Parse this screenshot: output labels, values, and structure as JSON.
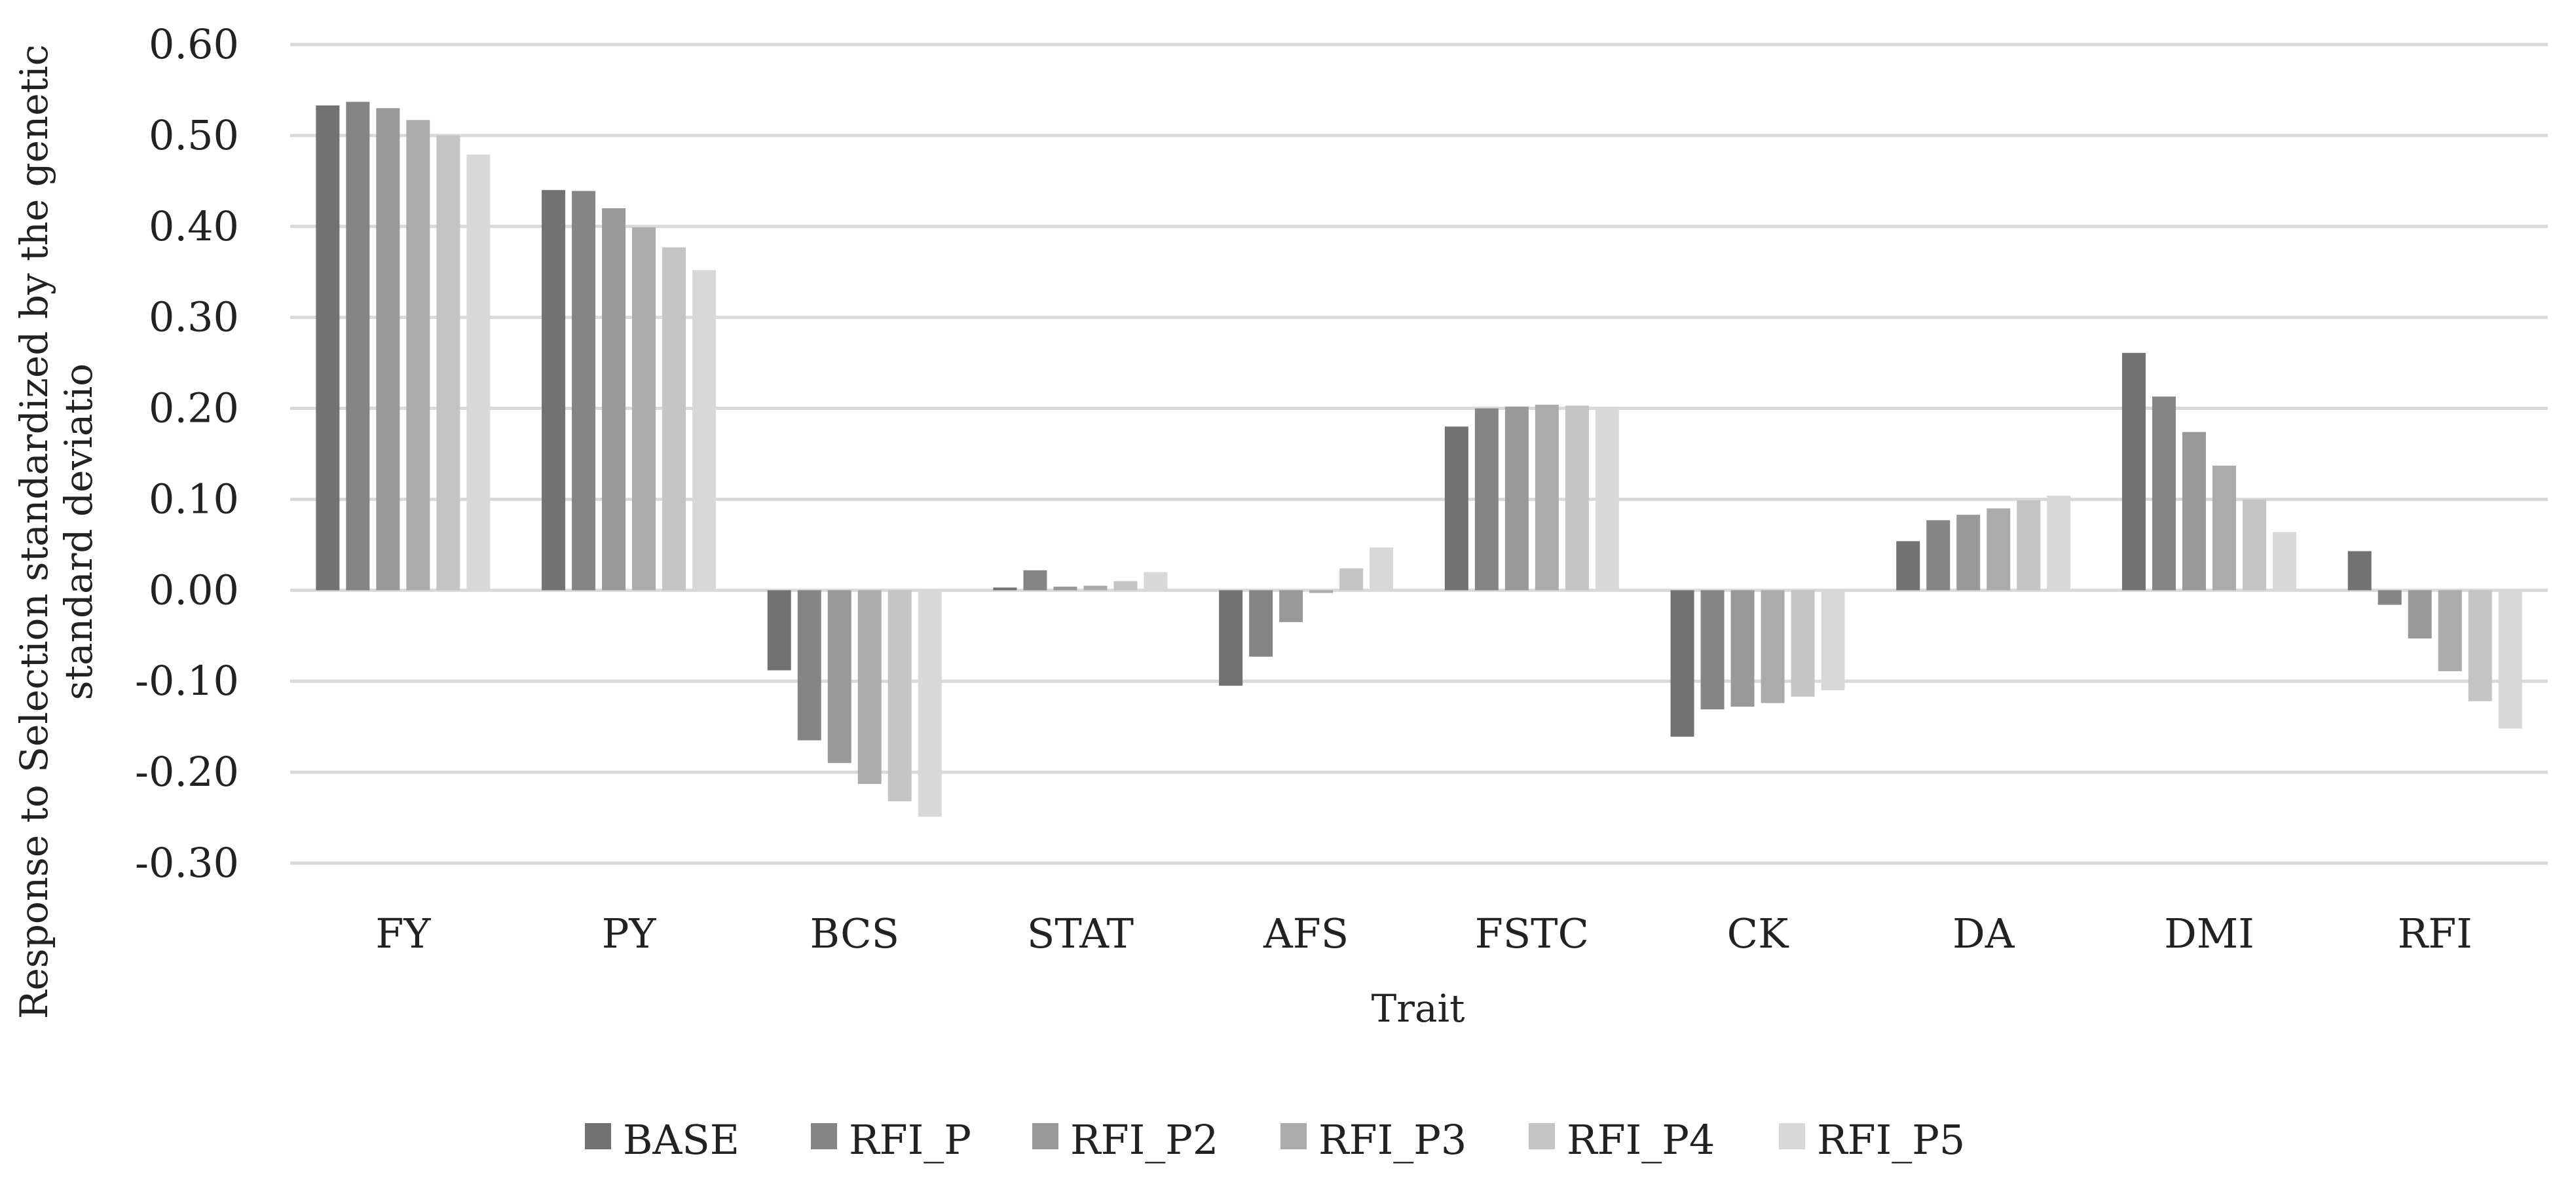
{
  "chart_data": {
    "type": "bar",
    "title": "",
    "xlabel": "Trait",
    "ylabel_lines": [
      "Response to Selection standardized by the genetic",
      "standard deviatio"
    ],
    "ylim": [
      -0.3,
      0.6
    ],
    "yticks": [
      0.6,
      0.5,
      0.4,
      0.3,
      0.2,
      0.1,
      0.0,
      -0.1,
      -0.2,
      -0.3
    ],
    "ytick_labels": [
      "0.60",
      "0.50",
      "0.40",
      "0.30",
      "0.20",
      "0.10",
      "0.00",
      "-0.10",
      "-0.20",
      "-0.30"
    ],
    "grid": true,
    "legend_position": "bottom",
    "categories": [
      "FY",
      "PY",
      "BCS",
      "STAT",
      "AFS",
      "FSTC",
      "CK",
      "DA",
      "DMI",
      "RFI"
    ],
    "series": [
      {
        "name": "BASE",
        "color": "#727272",
        "values": [
          0.533,
          0.44,
          -0.088,
          0.003,
          -0.105,
          0.18,
          -0.161,
          0.054,
          0.261,
          0.043
        ]
      },
      {
        "name": "RFI_P",
        "color": "#858585",
        "values": [
          0.537,
          0.439,
          -0.165,
          0.022,
          -0.073,
          0.2,
          -0.131,
          0.077,
          0.213,
          -0.016
        ]
      },
      {
        "name": "RFI_P2",
        "color": "#999999",
        "values": [
          0.53,
          0.42,
          -0.19,
          0.004,
          -0.035,
          0.202,
          -0.128,
          0.083,
          0.174,
          -0.053
        ]
      },
      {
        "name": "RFI_P3",
        "color": "#ababab",
        "values": [
          0.517,
          0.399,
          -0.213,
          0.005,
          -0.003,
          0.204,
          -0.124,
          0.09,
          0.137,
          -0.089
        ]
      },
      {
        "name": "RFI_P4",
        "color": "#c4c4c4",
        "values": [
          0.5,
          0.377,
          -0.232,
          0.01,
          0.024,
          0.203,
          -0.117,
          0.099,
          0.1,
          -0.122
        ]
      },
      {
        "name": "RFI_P5",
        "color": "#d8d8d8",
        "values": [
          0.479,
          0.352,
          -0.249,
          0.02,
          0.047,
          0.201,
          -0.11,
          0.104,
          0.064,
          -0.152
        ]
      }
    ]
  }
}
